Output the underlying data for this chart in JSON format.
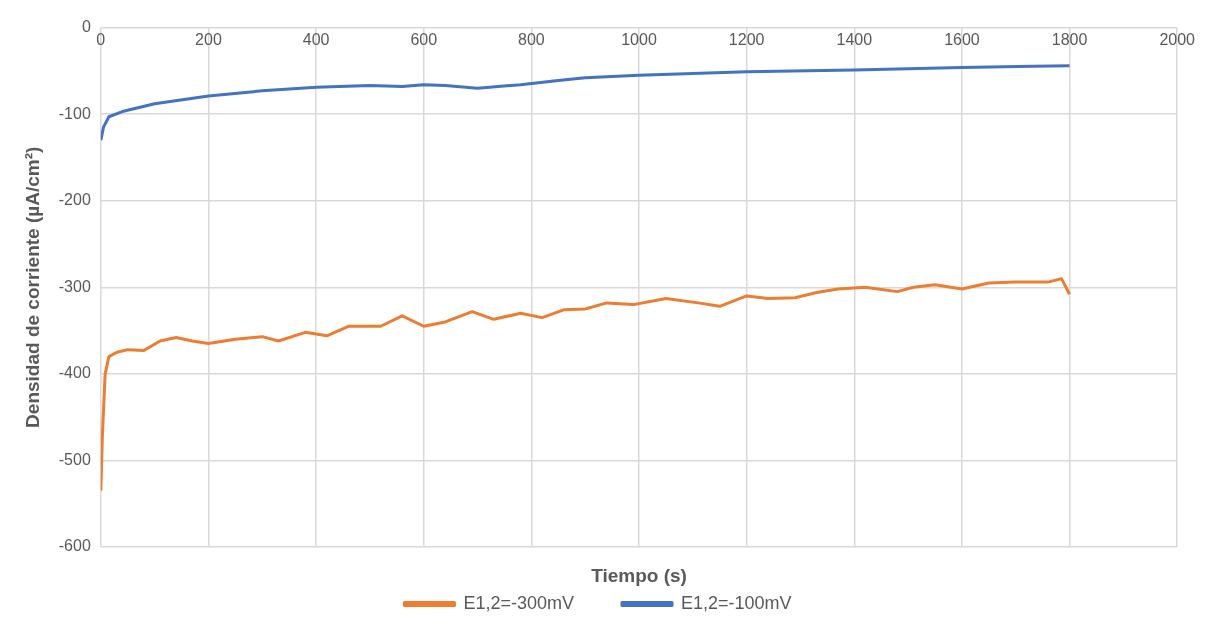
{
  "chart_data": {
    "type": "line",
    "xlabel": "Tiempo (s)",
    "ylabel": "Densidad de corriente (µA/cm²)",
    "xlim": [
      0,
      2000
    ],
    "xticks": [
      0,
      200,
      400,
      600,
      800,
      1000,
      1200,
      1400,
      1600,
      1800,
      2000
    ],
    "ylim": [
      -600,
      0
    ],
    "yticks": [
      -600,
      -500,
      -400,
      -300,
      -200,
      -100,
      0
    ],
    "grid": true,
    "legend": "bottom",
    "marker": "none",
    "series": [
      {
        "name": "E1,2=-300mV",
        "color": "#ed7d31",
        "x": [
          0,
          3,
          8,
          15,
          30,
          50,
          80,
          110,
          140,
          170,
          200,
          250,
          300,
          330,
          380,
          420,
          460,
          520,
          560,
          600,
          640,
          690,
          730,
          780,
          820,
          860,
          900,
          940,
          990,
          1050,
          1110,
          1150,
          1200,
          1240,
          1290,
          1330,
          1370,
          1420,
          1480,
          1510,
          1550,
          1600,
          1650,
          1700,
          1760,
          1785,
          1800
        ],
        "values": [
          -535,
          -470,
          -400,
          -380,
          -375,
          -372,
          -373,
          -362,
          -358,
          -362,
          -365,
          -360,
          -357,
          -362,
          -352,
          -356,
          -345,
          -345,
          -333,
          -345,
          -340,
          -328,
          -337,
          -330,
          -335,
          -326,
          -325,
          -318,
          -320,
          -313,
          -318,
          -322,
          -310,
          -313,
          -312,
          -306,
          -302,
          -300,
          -305,
          -300,
          -297,
          -302,
          -295,
          -294,
          -294,
          -290,
          -308
        ]
      },
      {
        "name": "E1,2=-100mV",
        "color": "#4472c4",
        "x": [
          0,
          5,
          15,
          40,
          100,
          200,
          300,
          400,
          500,
          560,
          600,
          640,
          700,
          780,
          850,
          900,
          1000,
          1200,
          1400,
          1600,
          1800
        ],
        "values": [
          -130,
          -115,
          -103,
          -97,
          -88,
          -79,
          -73,
          -69,
          -67,
          -68,
          -66,
          -67,
          -70,
          -66,
          -61,
          -58,
          -55,
          -51,
          -49,
          -46,
          -44
        ]
      }
    ]
  }
}
